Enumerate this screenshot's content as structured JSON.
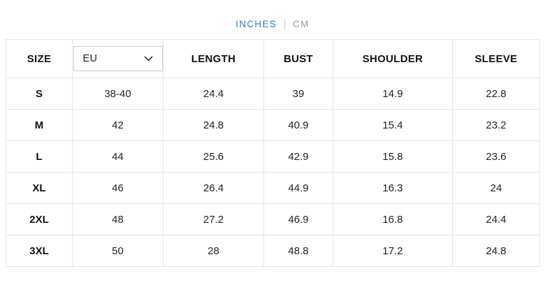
{
  "unit_toggle": {
    "inches_label": "INCHES",
    "separator": "|",
    "cm_label": "CM",
    "active_unit": "INCHES",
    "active_color": "#2d78c3",
    "inactive_color": "#9a9a9a"
  },
  "table": {
    "header": {
      "size_label": "SIZE",
      "region_selected": "EU",
      "region_dropdown_icon": "chevron-down-icon",
      "columns": [
        "LENGTH",
        "BUST",
        "SHOULDER",
        "SLEEVE"
      ]
    },
    "rows": [
      {
        "size": "S",
        "values": [
          "38-40",
          "24.4",
          "39",
          "14.9",
          "22.8"
        ]
      },
      {
        "size": "M",
        "values": [
          "42",
          "24.8",
          "40.9",
          "15.4",
          "23.2"
        ]
      },
      {
        "size": "L",
        "values": [
          "44",
          "25.6",
          "42.9",
          "15.8",
          "23.6"
        ]
      },
      {
        "size": "XL",
        "values": [
          "46",
          "26.4",
          "44.9",
          "16.3",
          "24"
        ]
      },
      {
        "size": "2XL",
        "values": [
          "48",
          "27.2",
          "46.9",
          "16.8",
          "24.4"
        ]
      },
      {
        "size": "3XL",
        "values": [
          "50",
          "28",
          "48.8",
          "17.2",
          "24.8"
        ]
      }
    ]
  },
  "colors": {
    "table_border": "#e4e4e4",
    "dropdown_border": "#cccccc",
    "text": "#222222"
  }
}
